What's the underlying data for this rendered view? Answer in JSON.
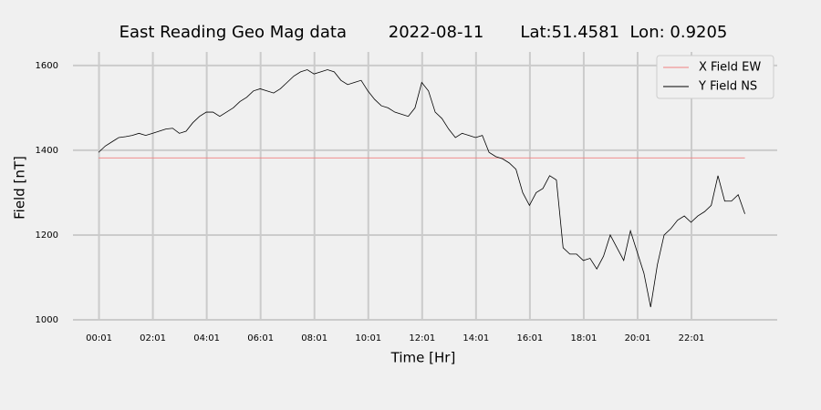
{
  "chart_data": {
    "type": "line",
    "title": "East Reading Geo Mag data        2022-08-11       Lat:51.4581  Lon: 0.9205",
    "xlabel": "Time  [Hr]",
    "ylabel": "Field  [nT]",
    "xlim": [
      -0.95,
      25.2
    ],
    "ylim": [
      1000,
      1632
    ],
    "xticks": [
      {
        "value": 0.0167,
        "label": "00:01"
      },
      {
        "value": 2.0167,
        "label": "02:01"
      },
      {
        "value": 4.0167,
        "label": "04:01"
      },
      {
        "value": 6.0167,
        "label": "06:01"
      },
      {
        "value": 8.0167,
        "label": "08:01"
      },
      {
        "value": 10.0167,
        "label": "10:01"
      },
      {
        "value": 12.0167,
        "label": "12:01"
      },
      {
        "value": 14.0167,
        "label": "14:01"
      },
      {
        "value": 16.0167,
        "label": "16:01"
      },
      {
        "value": 18.0167,
        "label": "18:01"
      },
      {
        "value": 20.0167,
        "label": "20:01"
      },
      {
        "value": 22.0167,
        "label": "22:01"
      }
    ],
    "yticks": [
      1000,
      1200,
      1400,
      1600
    ],
    "grid": true,
    "legend": "upper right",
    "series": [
      {
        "name": "X Field EW",
        "color": "#f08080",
        "x": [
          0,
          24
        ],
        "values": [
          1382,
          1382
        ]
      },
      {
        "name": "Y Field NS",
        "color": "#000000",
        "x": [
          0,
          0.25,
          0.5,
          0.75,
          1,
          1.25,
          1.5,
          1.75,
          2,
          2.25,
          2.5,
          2.75,
          3,
          3.25,
          3.5,
          3.75,
          4,
          4.25,
          4.5,
          4.75,
          5,
          5.25,
          5.5,
          5.75,
          6,
          6.25,
          6.5,
          6.75,
          7,
          7.25,
          7.5,
          7.75,
          8,
          8.25,
          8.5,
          8.75,
          9,
          9.25,
          9.5,
          9.75,
          10,
          10.25,
          10.5,
          10.75,
          11,
          11.25,
          11.5,
          11.75,
          12,
          12.25,
          12.5,
          12.75,
          13,
          13.25,
          13.5,
          13.75,
          14,
          14.25,
          14.5,
          14.75,
          15,
          15.25,
          15.5,
          15.75,
          16,
          16.25,
          16.5,
          16.75,
          17,
          17.25,
          17.5,
          17.75,
          18,
          18.25,
          18.5,
          18.75,
          19,
          19.25,
          19.5,
          19.75,
          20,
          20.25,
          20.5,
          20.75,
          21,
          21.25,
          21.5,
          21.75,
          22,
          22.25,
          22.5,
          22.75,
          23,
          23.25,
          23.5,
          23.75,
          24
        ],
        "values": [
          1395,
          1410,
          1420,
          1430,
          1432,
          1435,
          1440,
          1435,
          1440,
          1445,
          1450,
          1452,
          1440,
          1445,
          1465,
          1480,
          1490,
          1490,
          1480,
          1490,
          1500,
          1515,
          1525,
          1540,
          1545,
          1540,
          1535,
          1545,
          1560,
          1575,
          1585,
          1590,
          1580,
          1585,
          1590,
          1585,
          1565,
          1555,
          1560,
          1565,
          1540,
          1520,
          1505,
          1500,
          1490,
          1485,
          1480,
          1500,
          1560,
          1540,
          1490,
          1475,
          1450,
          1430,
          1440,
          1435,
          1430,
          1435,
          1395,
          1385,
          1380,
          1370,
          1355,
          1300,
          1270,
          1300,
          1310,
          1340,
          1330,
          1170,
          1155,
          1155,
          1140,
          1145,
          1120,
          1150,
          1200,
          1170,
          1140,
          1210,
          1160,
          1110,
          1030,
          1130,
          1200,
          1215,
          1235,
          1245,
          1230,
          1245,
          1255,
          1270,
          1340,
          1280,
          1280,
          1295,
          1250
        ]
      }
    ]
  }
}
